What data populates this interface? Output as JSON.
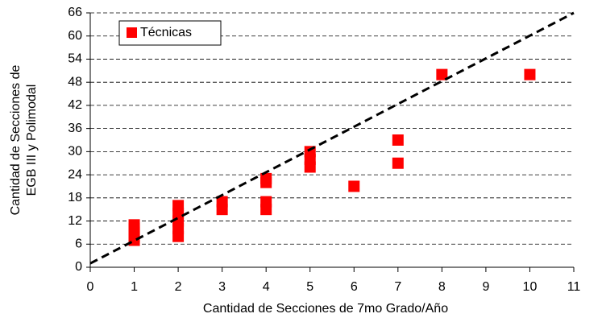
{
  "chart_data": {
    "type": "scatter",
    "xlabel": "Cantidad de Secciones de 7mo Grado/Año",
    "ylabel": [
      "Cantidad de Secciones de",
      "EGB III y Polimodal"
    ],
    "xlim": [
      0,
      11
    ],
    "xticks": [
      0,
      1,
      2,
      3,
      4,
      5,
      6,
      7,
      8,
      9,
      10,
      11
    ],
    "ylim": [
      0,
      66
    ],
    "yticks": [
      0,
      6,
      12,
      18,
      24,
      30,
      36,
      42,
      48,
      54,
      60,
      66
    ],
    "grid": true,
    "legend": "upper left",
    "series": [
      {
        "name": "Técnicas",
        "color": "#ff0000",
        "x": [
          1,
          1,
          1,
          1,
          1,
          2,
          2,
          2,
          2,
          2,
          3,
          3,
          4,
          4,
          4,
          4,
          5,
          5,
          5,
          6,
          7,
          7,
          8,
          10
        ],
        "values": [
          7,
          8,
          9,
          10,
          11,
          8,
          10,
          12,
          14,
          16,
          15,
          17,
          15,
          17,
          22,
          23,
          26,
          28,
          30,
          21,
          27,
          33,
          50,
          50
        ]
      }
    ],
    "trendline": {
      "color": "#000000",
      "x": [
        0,
        11
      ],
      "values": [
        1,
        66
      ]
    }
  }
}
